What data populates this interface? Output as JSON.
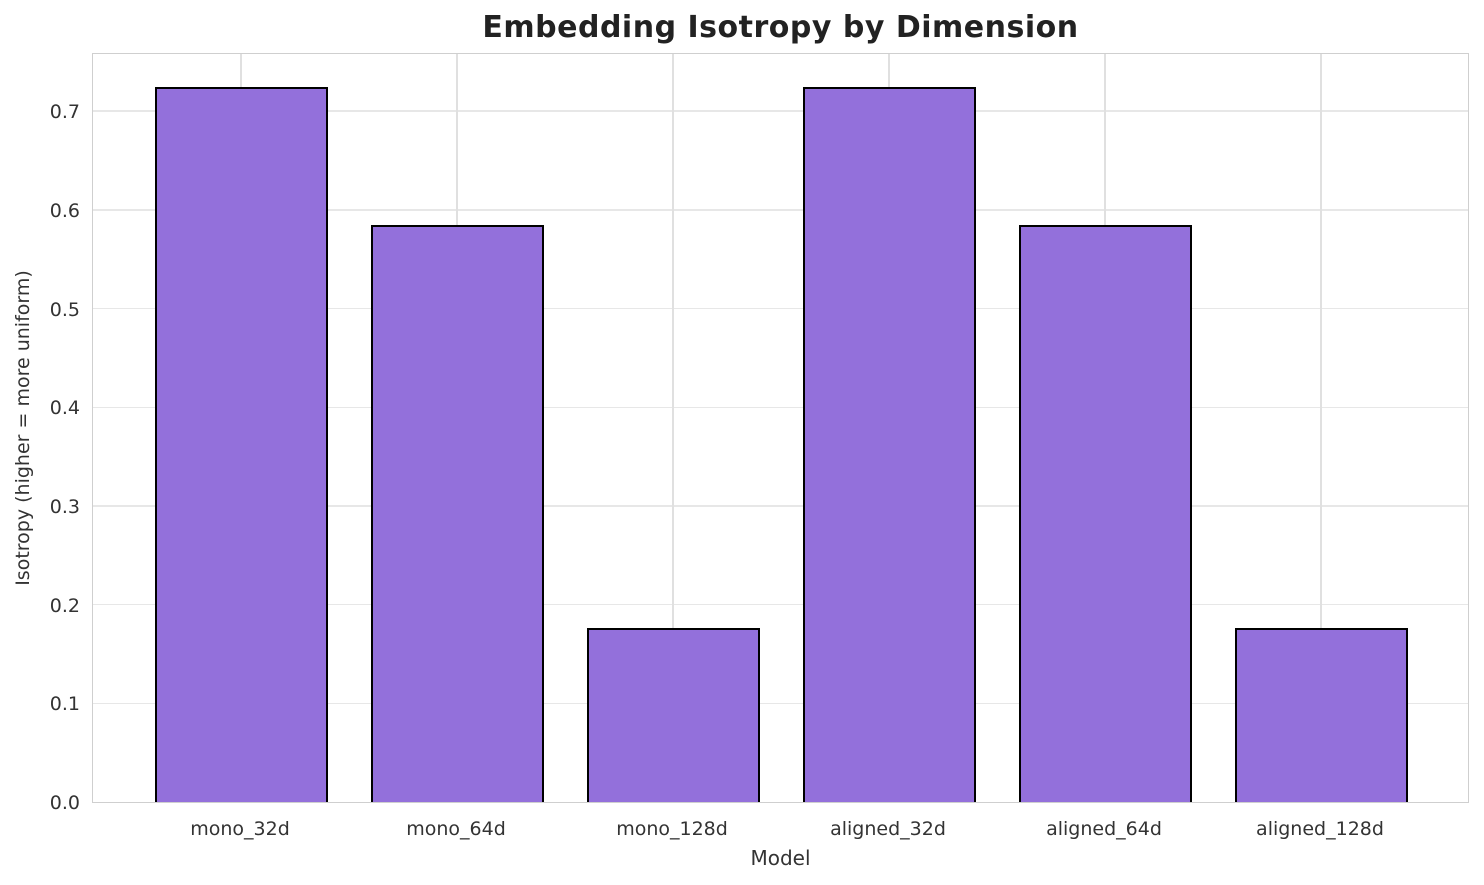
{
  "chart_data": {
    "type": "bar",
    "title": "Embedding Isotropy by Dimension",
    "xlabel": "Model",
    "ylabel": "Isotropy (higher = more uniform)",
    "categories": [
      "mono_32d",
      "mono_64d",
      "mono_128d",
      "aligned_32d",
      "aligned_64d",
      "aligned_128d"
    ],
    "values": [
      0.725,
      0.585,
      0.176,
      0.725,
      0.585,
      0.176
    ],
    "yticks": [
      0.0,
      0.1,
      0.2,
      0.3,
      0.4,
      0.5,
      0.6,
      0.7
    ],
    "ytick_labels": [
      "0.0",
      "0.1",
      "0.2",
      "0.3",
      "0.4",
      "0.5",
      "0.6",
      "0.7"
    ],
    "ylim": [
      0,
      0.76
    ],
    "grid": true,
    "legend": null,
    "bar_color": "#9370DB",
    "bar_edge_color": "#000000",
    "grid_color": "#e7e7e7",
    "spine_color": "#cfcfcf",
    "title_color": "#222222",
    "tick_color": "#333333"
  }
}
